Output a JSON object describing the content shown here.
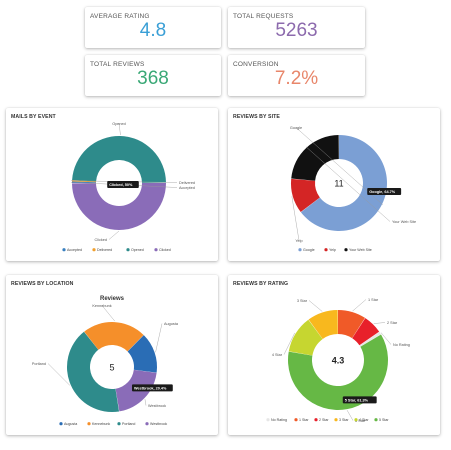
{
  "colors": {
    "rating": "#3a9fd6",
    "requests": "#8c6aad",
    "reviews": "#3aa876",
    "conversion": "#e8866a"
  },
  "stats": {
    "average_rating": {
      "label": "AVERAGE RATING",
      "value": "4.8"
    },
    "total_requests": {
      "label": "TOTAL REQUESTS",
      "value": "5263"
    },
    "total_reviews": {
      "label": "TOTAL REVIEWS",
      "value": "368"
    },
    "conversion": {
      "label": "CONVERSION",
      "value": "7.2%"
    }
  },
  "chart_data": [
    {
      "type": "pie",
      "title": "MAILS BY EVENT",
      "center_text": "",
      "tooltip": "Clicked, 50%",
      "labels": [
        "Accepted",
        "Delivered",
        "Opened",
        "Clicked"
      ],
      "values": [
        0.5,
        0.5,
        49,
        50
      ],
      "colors": [
        "#3a80c0",
        "#f0a030",
        "#2e8b8b",
        "#8a6cb8"
      ],
      "legend": [
        "Accepted",
        "Delivered",
        "Opened",
        "Clicked"
      ],
      "legend_placement": "bottom"
    },
    {
      "type": "pie",
      "title": "REVIEWS BY SITE",
      "center_text": "11",
      "tooltip": "Google, 64.7%",
      "labels": [
        "Google",
        "Yelp",
        "Your Web Site"
      ],
      "values": [
        64.7,
        11.8,
        23.5
      ],
      "colors": [
        "#7b9fd4",
        "#d42525",
        "#111111"
      ],
      "legend": [
        "Google",
        "Yelp",
        "Your Web Site"
      ],
      "legend_placement": "bottom"
    },
    {
      "type": "pie",
      "title": "REVIEWS BY LOCATION",
      "subtitle": "Reviews",
      "center_text": "5",
      "tooltip": "Westbrook, 20.4%",
      "labels": [
        "Augusta",
        "Westbrook",
        "Portland",
        "Kennebunk"
      ],
      "values": [
        14.6,
        20.4,
        41.9,
        23.1
      ],
      "colors": [
        "#2a6db5",
        "#8a6cb8",
        "#2e8b8b",
        "#f58f2a"
      ],
      "legend": [
        "Augusta",
        "Kennebunk",
        "Portland",
        "Westbrook"
      ],
      "legend_placement": "bottom"
    },
    {
      "type": "pie",
      "title": "REVIEWS BY RATING",
      "center_text": "4.3",
      "tooltip": "5 Star, 61.3%",
      "labels": [
        "1 Star",
        "2 Star",
        "No Rating",
        "5 Star",
        "4 Star",
        "3 Star"
      ],
      "values": [
        9.2,
        6.3,
        1.0,
        61.3,
        12.2,
        10.0
      ],
      "colors": [
        "#f05a28",
        "#e8202a",
        "#e6e6e6",
        "#66b845",
        "#c6d630",
        "#f8b81e"
      ],
      "legend": [
        "No Rating",
        "1 Star",
        "2 Star",
        "3 Star",
        "4 Star",
        "5 Star"
      ],
      "legend_colors": [
        "#e6e6e6",
        "#f05a28",
        "#e8202a",
        "#f8b81e",
        "#c6d630",
        "#66b845"
      ],
      "legend_placement": "bottom"
    }
  ]
}
